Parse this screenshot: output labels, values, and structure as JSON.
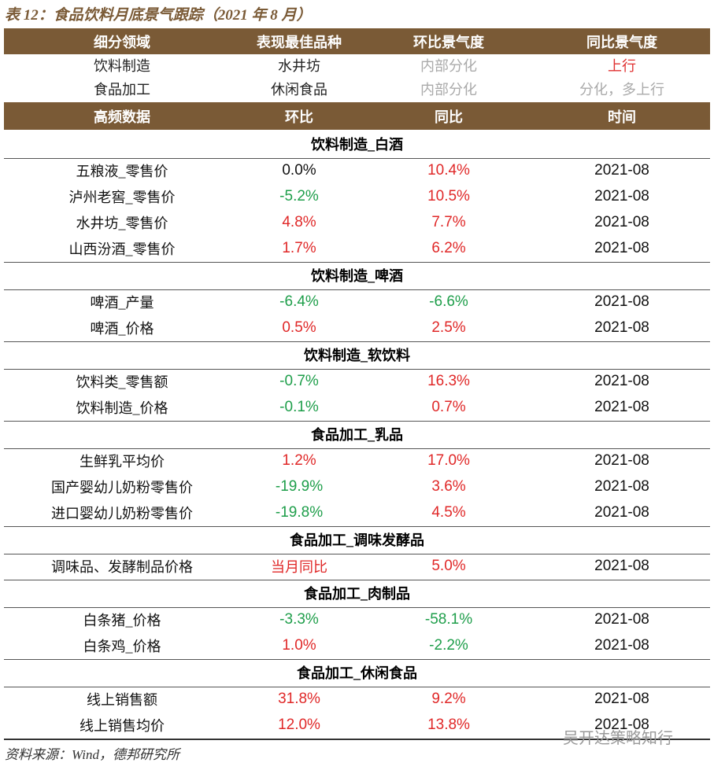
{
  "title": "表 12：食品饮料月底景气跟踪（2021 年 8 月）",
  "header": [
    "细分领域",
    "表现最佳品种",
    "环比景气度",
    "同比景气度"
  ],
  "summary": [
    [
      "饮料制造",
      "水井坊",
      "内部分化",
      "上行"
    ],
    [
      "食品加工",
      "休闲食品",
      "内部分化",
      "分化，多上行"
    ]
  ],
  "data_header": [
    "高频数据",
    "环比",
    "同比",
    "时间"
  ],
  "sections": [
    {
      "title": "饮料制造_白酒",
      "rows": [
        [
          "五粮液_零售价",
          "0.0%",
          "10.4%",
          "2021-08"
        ],
        [
          "泸州老窖_零售价",
          "-5.2%",
          "10.5%",
          "2021-08"
        ],
        [
          "水井坊_零售价",
          "4.8%",
          "7.7%",
          "2021-08"
        ],
        [
          "山西汾酒_零售价",
          "1.7%",
          "6.2%",
          "2021-08"
        ]
      ]
    },
    {
      "title": "饮料制造_啤酒",
      "rows": [
        [
          "啤酒_产量",
          "-6.4%",
          "-6.6%",
          "2021-08"
        ],
        [
          "啤酒_价格",
          "0.5%",
          "2.5%",
          "2021-08"
        ]
      ]
    },
    {
      "title": "饮料制造_软饮料",
      "rows": [
        [
          "饮料类_零售额",
          "-0.7%",
          "16.3%",
          "2021-08"
        ],
        [
          "饮料制造_价格",
          "-0.1%",
          "0.7%",
          "2021-08"
        ]
      ]
    },
    {
      "title": "食品加工_乳品",
      "rows": [
        [
          "生鲜乳平均价",
          "1.2%",
          "17.0%",
          "2021-08"
        ],
        [
          "国产婴幼儿奶粉零售价",
          "-19.9%",
          "3.6%",
          "2021-08"
        ],
        [
          "进口婴幼儿奶粉零售价",
          "-19.8%",
          "4.5%",
          "2021-08"
        ]
      ]
    },
    {
      "title": "食品加工_调味发酵品",
      "rows": [
        [
          "调味品、发酵制品价格",
          "当月同比",
          "5.0%",
          "2021-08"
        ]
      ]
    },
    {
      "title": "食品加工_肉制品",
      "rows": [
        [
          "白条猪_价格",
          "-3.3%",
          "-58.1%",
          "2021-08"
        ],
        [
          "白条鸡_价格",
          "1.0%",
          "-2.2%",
          "2021-08"
        ]
      ]
    },
    {
      "title": "食品加工_休闲食品",
      "rows": [
        [
          "线上销售额",
          "31.8%",
          "9.2%",
          "2021-08"
        ],
        [
          "线上销售均价",
          "12.0%",
          "13.8%",
          "2021-08"
        ]
      ]
    }
  ],
  "source": "资料来源：Wind，德邦研究所",
  "watermark": "吴开达策略知行"
}
